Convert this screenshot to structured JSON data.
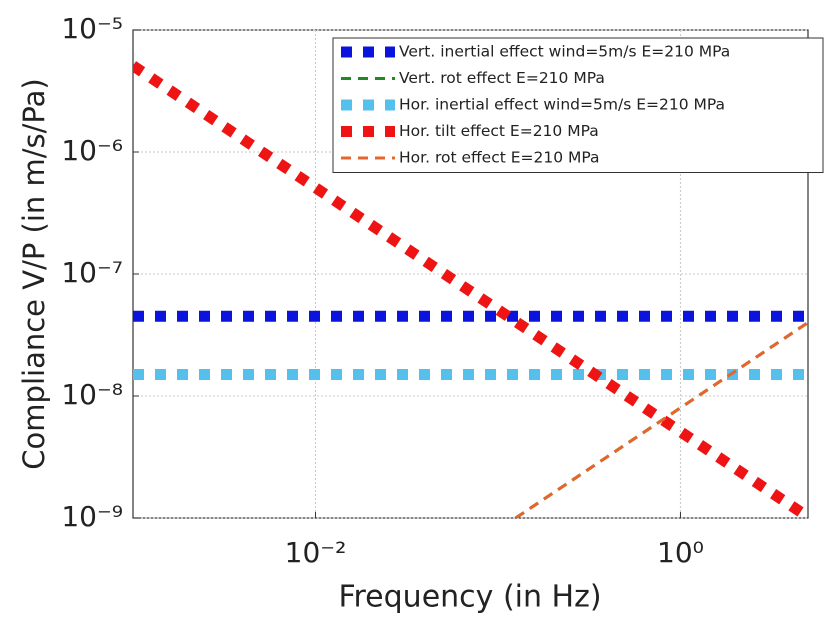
{
  "chart_data": {
    "type": "line",
    "xlabel": "Frequency (in Hz)",
    "ylabel": "Compliance V/P (in m/s/Pa)",
    "xscale": "log",
    "yscale": "log",
    "xlim": [
      0.001,
      5
    ],
    "ylim": [
      1e-09,
      1e-05
    ],
    "xticks": [
      {
        "value": 0.01,
        "label": "10⁻²"
      },
      {
        "value": 1,
        "label": "10⁰"
      }
    ],
    "yticks": [
      {
        "value": 1e-09,
        "label": "10⁻⁹"
      },
      {
        "value": 1e-08,
        "label": "10⁻⁸"
      },
      {
        "value": 1e-07,
        "label": "10⁻⁷"
      },
      {
        "value": 1e-06,
        "label": "10⁻⁶"
      },
      {
        "value": 1e-05,
        "label": "10⁻⁵"
      }
    ],
    "grid": true,
    "legend": "upper right",
    "series": [
      {
        "name": "Vert. inertial effect wind=5m/s E=210 MPa",
        "color": "#0a14dc",
        "line_style": "dotted",
        "x": [
          0.001,
          5
        ],
        "values": [
          4.5e-08,
          4.5e-08
        ]
      },
      {
        "name": "Vert. rot effect E=210 MPa",
        "color": "#1f8a1f",
        "line_style": "dashed",
        "x": [
          0.125,
          5
        ],
        "values": [
          1e-09,
          4e-08
        ]
      },
      {
        "name": "Hor. inertial effect wind=5m/s E=210 MPa",
        "color": "#55c0ec",
        "line_style": "dotted",
        "x": [
          0.001,
          5
        ],
        "values": [
          1.5e-08,
          1.5e-08
        ]
      },
      {
        "name": "Hor. tilt effect E=210 MPa",
        "color": "#ee1414",
        "line_style": "dotted",
        "x": [
          0.001,
          5
        ],
        "values": [
          5.1e-06,
          1.02e-09
        ]
      },
      {
        "name": "Hor. rot effect E=210 MPa",
        "color": "#e8642c",
        "line_style": "dashed",
        "x": [
          0.125,
          5
        ],
        "values": [
          1e-09,
          4e-08
        ]
      }
    ]
  }
}
